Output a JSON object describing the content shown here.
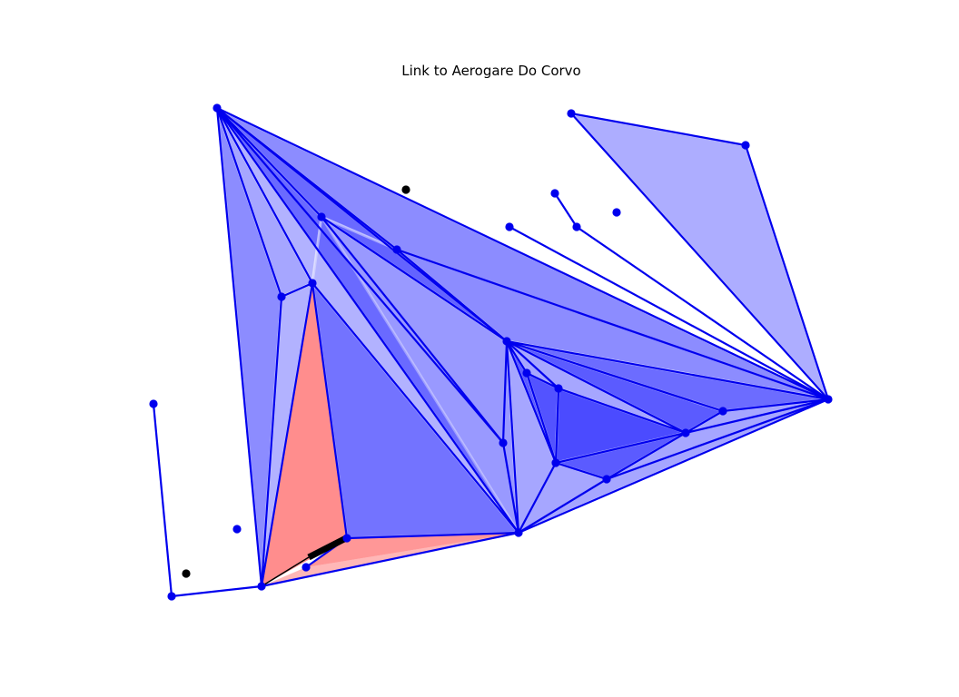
{
  "title": "Link to Aerogare Do Corvo",
  "colors": {
    "edge": "#0000ee",
    "node": "#0000ee",
    "face_blue": "#0000ff",
    "face_red": "#ff3030",
    "highlight": "#000000",
    "background": "#ffffff"
  }
}
